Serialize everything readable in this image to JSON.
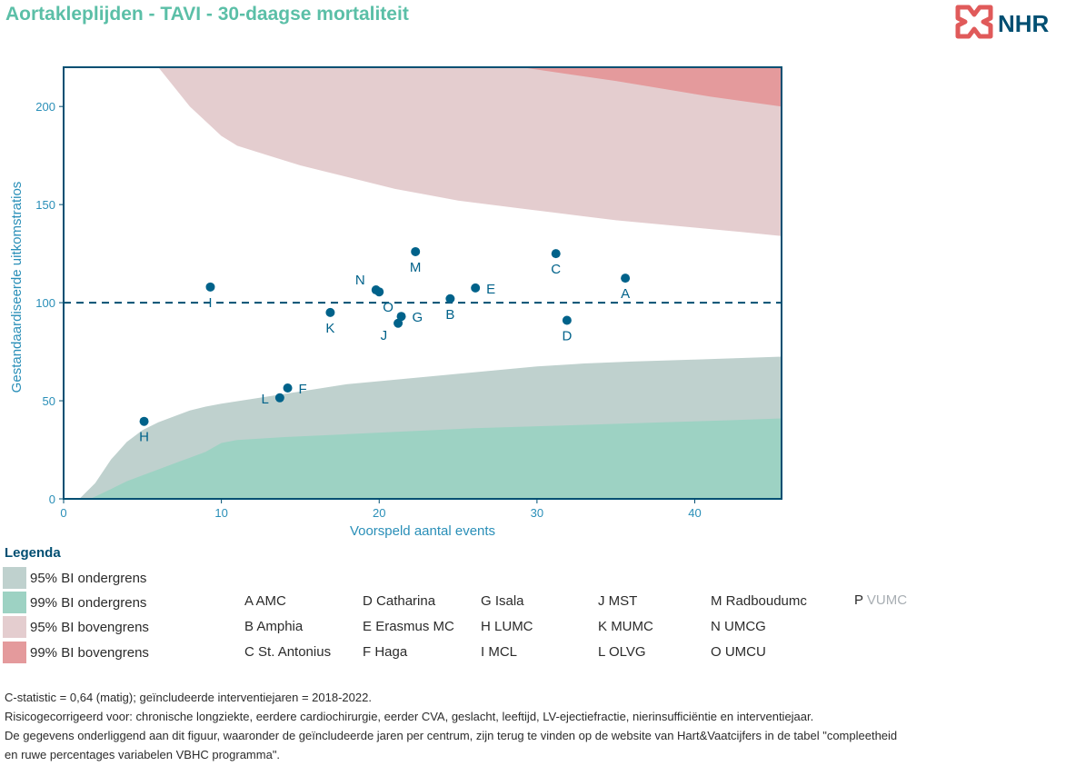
{
  "title": "Aortakleplijden - TAVI - 30-daagse mortaliteit",
  "logo": {
    "text": "NHR",
    "icon": "nhr-knot-logo-icon",
    "color_icon": "#e05a5a",
    "color_text": "#004f72"
  },
  "colors": {
    "axis": "#004f72",
    "points": "#00628a",
    "lower95": "#bfd1ce",
    "lower99": "#9dd2c3",
    "upper95": "#e4cdcf",
    "upper99": "#e49a9c"
  },
  "chart_data": {
    "type": "scatter",
    "xlabel": "Voorspeld aantal events",
    "ylabel": "Gestandaardiseerde uitkomstratios",
    "xlim": [
      0,
      45.5
    ],
    "ylim": [
      0,
      220
    ],
    "xticks": [
      0,
      10,
      20,
      30,
      40
    ],
    "yticks": [
      0,
      50,
      100,
      150,
      200
    ],
    "reference_line": 100,
    "points": [
      {
        "label": "A",
        "x": 35.6,
        "y": 112.5,
        "label_pos": "below"
      },
      {
        "label": "B",
        "x": 24.5,
        "y": 102,
        "label_pos": "below"
      },
      {
        "label": "C",
        "x": 31.2,
        "y": 125,
        "label_pos": "below"
      },
      {
        "label": "D",
        "x": 31.9,
        "y": 91,
        "label_pos": "below"
      },
      {
        "label": "E",
        "x": 26.1,
        "y": 107.5,
        "label_pos": "right"
      },
      {
        "label": "F",
        "x": 14.2,
        "y": 56.5,
        "label_pos": "right"
      },
      {
        "label": "G",
        "x": 21.4,
        "y": 93,
        "label_pos": "right"
      },
      {
        "label": "H",
        "x": 5.1,
        "y": 39.5,
        "label_pos": "below"
      },
      {
        "label": "I",
        "x": 9.3,
        "y": 108,
        "label_pos": "below"
      },
      {
        "label": "J",
        "x": 21.2,
        "y": 89.5,
        "label_pos": "belowleft"
      },
      {
        "label": "K",
        "x": 16.9,
        "y": 95,
        "label_pos": "below"
      },
      {
        "label": "L",
        "x": 13.7,
        "y": 51.5,
        "label_pos": "left"
      },
      {
        "label": "M",
        "x": 22.3,
        "y": 126,
        "label_pos": "below"
      },
      {
        "label": "N",
        "x": 19.8,
        "y": 106.5,
        "label_pos": "aboveleft"
      },
      {
        "label": "O",
        "x": 20.0,
        "y": 105.5,
        "label_pos": "belowright"
      }
    ],
    "bands": {
      "upper99": [
        [
          29,
          220
        ],
        [
          32,
          216.5
        ],
        [
          35,
          213
        ],
        [
          38,
          209
        ],
        [
          41,
          205
        ],
        [
          45.5,
          200
        ]
      ],
      "upper95": [
        [
          6,
          220
        ],
        [
          8,
          200
        ],
        [
          10,
          185
        ],
        [
          11,
          180
        ],
        [
          13,
          175
        ],
        [
          15,
          170
        ],
        [
          17,
          166
        ],
        [
          19,
          162
        ],
        [
          21,
          158
        ],
        [
          23,
          155
        ],
        [
          25,
          152
        ],
        [
          27,
          150
        ],
        [
          29,
          148
        ],
        [
          31,
          146
        ],
        [
          33,
          144
        ],
        [
          35,
          142
        ],
        [
          37,
          140.5
        ],
        [
          39,
          139
        ],
        [
          41,
          137.5
        ],
        [
          43,
          136
        ],
        [
          45.5,
          134
        ]
      ],
      "lower95": [
        [
          1,
          0
        ],
        [
          2,
          8
        ],
        [
          3,
          20
        ],
        [
          4,
          29
        ],
        [
          5,
          35
        ],
        [
          6,
          39
        ],
        [
          7,
          42
        ],
        [
          8,
          45
        ],
        [
          9,
          47
        ],
        [
          10,
          48.5
        ],
        [
          12,
          51
        ],
        [
          14,
          53.5
        ],
        [
          16,
          56
        ],
        [
          18,
          58.5
        ],
        [
          20,
          60
        ],
        [
          22,
          61.5
        ],
        [
          24,
          63
        ],
        [
          26,
          64.5
        ],
        [
          28,
          66
        ],
        [
          30,
          67.5
        ],
        [
          33,
          69
        ],
        [
          36,
          70
        ],
        [
          40,
          71
        ],
        [
          45.5,
          72.5
        ]
      ],
      "lower99": [
        [
          1.7,
          0
        ],
        [
          3,
          5
        ],
        [
          4,
          9
        ],
        [
          5,
          12
        ],
        [
          6,
          15
        ],
        [
          7,
          18
        ],
        [
          8,
          21
        ],
        [
          9,
          24
        ],
        [
          10,
          28.5
        ],
        [
          11,
          30
        ],
        [
          14,
          31.5
        ],
        [
          18,
          33
        ],
        [
          22,
          34.5
        ],
        [
          26,
          36
        ],
        [
          30,
          37
        ],
        [
          34,
          38
        ],
        [
          38,
          39
        ],
        [
          42,
          40
        ],
        [
          45.5,
          41
        ]
      ]
    }
  },
  "legend": {
    "title": "Legenda",
    "items": [
      {
        "label": "95% BI ondergrens",
        "color": "#bfd1ce"
      },
      {
        "label": "99% BI ondergrens",
        "color": "#9dd2c3"
      },
      {
        "label": "95% BI bovengrens",
        "color": "#e4cdcf"
      },
      {
        "label": "99% BI bovengrens",
        "color": "#e49a9c"
      }
    ]
  },
  "centres": [
    {
      "letter": "A",
      "name": "AMC"
    },
    {
      "letter": "B",
      "name": "Amphia"
    },
    {
      "letter": "C",
      "name": "St. Antonius"
    },
    {
      "letter": "D",
      "name": "Catharina"
    },
    {
      "letter": "E",
      "name": "Erasmus MC"
    },
    {
      "letter": "F",
      "name": "Haga"
    },
    {
      "letter": "G",
      "name": "Isala"
    },
    {
      "letter": "H",
      "name": "LUMC"
    },
    {
      "letter": "I",
      "name": "MCL"
    },
    {
      "letter": "J",
      "name": "MST"
    },
    {
      "letter": "K",
      "name": "MUMC"
    },
    {
      "letter": "L",
      "name": "OLVG"
    },
    {
      "letter": "M",
      "name": "Radboudumc"
    },
    {
      "letter": "N",
      "name": "UMCG"
    },
    {
      "letter": "O",
      "name": "UMCU"
    },
    {
      "letter": "P",
      "name": "VUMC",
      "dim": true
    }
  ],
  "footnotes": [
    "C-statistic =  0,64 (matig); geïncludeerde interventiejaren = 2018-2022.",
    "Risicogecorrigeerd voor: chronische longziekte, eerdere cardiochirurgie, eerder CVA, geslacht, leeftijd, LV-ejectiefractie, nierinsufficiëntie en interventiejaar.",
    "De gegevens onderliggend aan dit figuur, waaronder de geïncludeerde jaren per centrum, zijn terug te vinden op de website van Hart&Vaatcijfers in de tabel \"compleetheid",
    "en ruwe percentages variabelen VBHC programma\"."
  ]
}
